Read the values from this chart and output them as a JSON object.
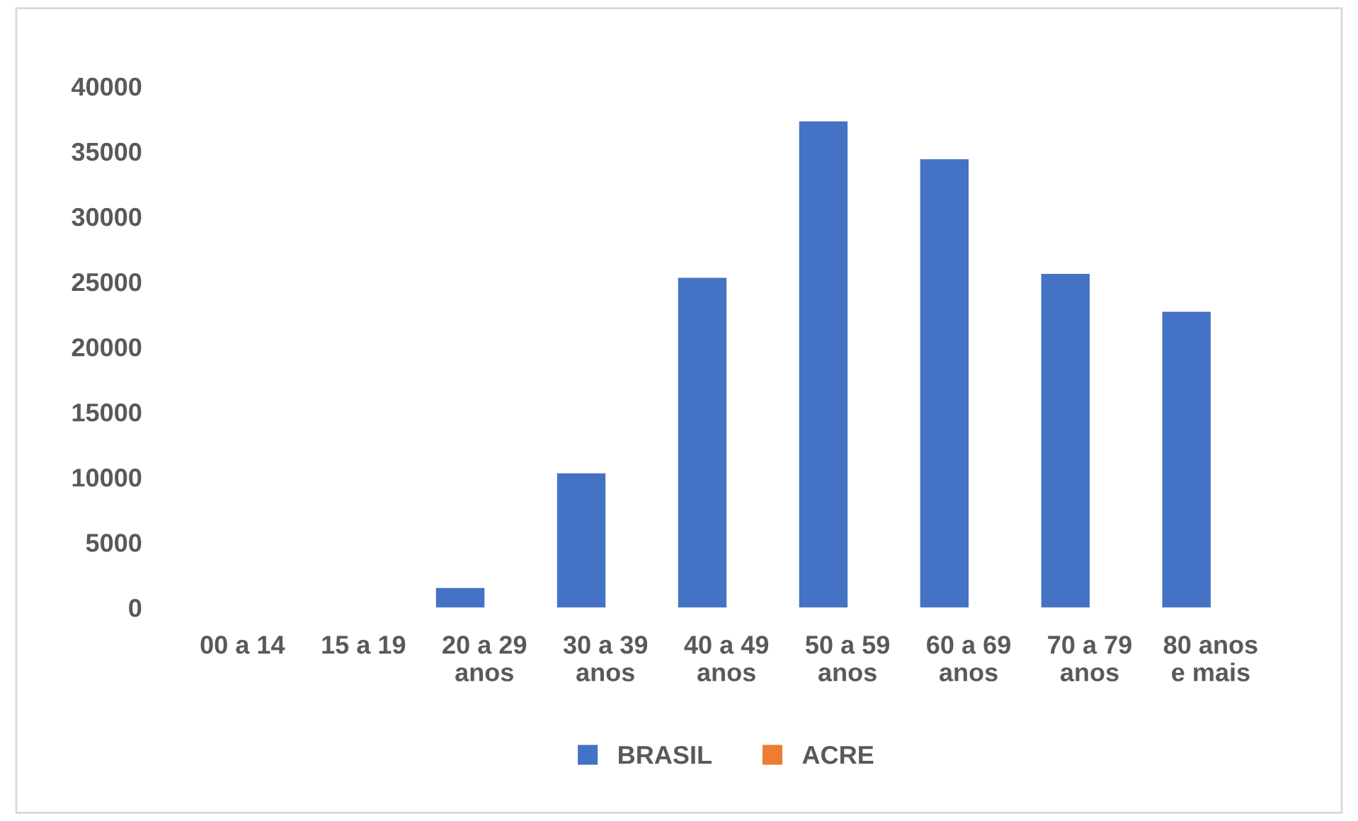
{
  "chart_data": {
    "type": "bar",
    "categories": [
      "00 a 14",
      "15 a 19",
      "20 a 29\nanos",
      "30 a 39\nanos",
      "40 a 49\nanos",
      "50 a 59\nanos",
      "60 a 69\nanos",
      "70 a 79\nanos",
      "80 anos\ne mais"
    ],
    "series": [
      {
        "name": "BRASIL",
        "color": "#4472c4",
        "values": [
          0,
          0,
          1500,
          10300,
          25300,
          37300,
          34400,
          25600,
          22700
        ]
      },
      {
        "name": "ACRE",
        "color": "#ed7d31",
        "values": [
          0,
          0,
          0,
          0,
          0,
          0,
          0,
          0,
          0
        ]
      }
    ],
    "ylim": [
      0,
      40000
    ],
    "yticks": [
      0,
      5000,
      10000,
      15000,
      20000,
      25000,
      30000,
      35000,
      40000
    ],
    "grid": false,
    "legend": "bottom"
  }
}
